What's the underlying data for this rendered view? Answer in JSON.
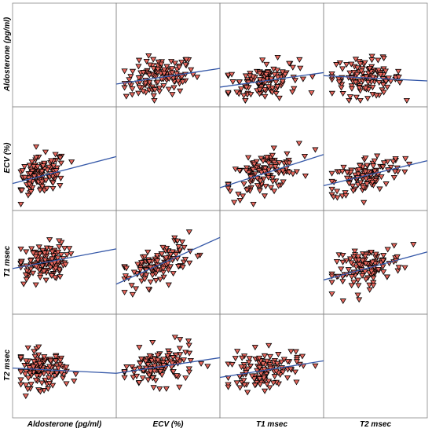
{
  "chart_data": {
    "type": "scatter",
    "title": "",
    "variables": [
      "Aldosterone (pg/ml)",
      "ECV (%)",
      "T1 msec",
      "T2 msec"
    ],
    "marker": {
      "shape": "downward-triangle",
      "fill": "#e8685e",
      "stroke": "#000000"
    },
    "fit_line_color": "#3558a8",
    "panels": [
      {
        "row": 0,
        "col": 1,
        "x_var": "ECV (%)",
        "y_var": "Aldosterone (pg/ml)",
        "fit_line": [
          [
            0,
            0.22
          ],
          [
            1,
            0.37
          ]
        ]
      },
      {
        "row": 0,
        "col": 2,
        "x_var": "T1 msec",
        "y_var": "Aldosterone (pg/ml)",
        "fit_line": [
          [
            0,
            0.19
          ],
          [
            1,
            0.33
          ]
        ]
      },
      {
        "row": 0,
        "col": 3,
        "x_var": "T2 msec",
        "y_var": "Aldosterone (pg/ml)",
        "fit_line": [
          [
            0,
            0.3
          ],
          [
            1,
            0.25
          ]
        ]
      },
      {
        "row": 1,
        "col": 0,
        "x_var": "Aldosterone (pg/ml)",
        "y_var": "ECV (%)",
        "fit_line": [
          [
            0,
            0.26
          ],
          [
            1,
            0.52
          ]
        ]
      },
      {
        "row": 1,
        "col": 2,
        "x_var": "T1 msec",
        "y_var": "ECV (%)",
        "fit_line": [
          [
            0,
            0.22
          ],
          [
            1,
            0.54
          ]
        ]
      },
      {
        "row": 1,
        "col": 3,
        "x_var": "T2 msec",
        "y_var": "ECV (%)",
        "fit_line": [
          [
            0,
            0.24
          ],
          [
            1,
            0.48
          ]
        ]
      },
      {
        "row": 2,
        "col": 0,
        "x_var": "Aldosterone (pg/ml)",
        "y_var": "T1 msec",
        "fit_line": [
          [
            0,
            0.44
          ],
          [
            1,
            0.63
          ]
        ]
      },
      {
        "row": 2,
        "col": 1,
        "x_var": "ECV (%)",
        "y_var": "T1 msec",
        "fit_line": [
          [
            0,
            0.29
          ],
          [
            1,
            0.74
          ]
        ]
      },
      {
        "row": 2,
        "col": 3,
        "x_var": "T2 msec",
        "y_var": "T1 msec",
        "fit_line": [
          [
            0,
            0.33
          ],
          [
            1,
            0.6
          ]
        ]
      },
      {
        "row": 3,
        "col": 0,
        "x_var": "Aldosterone (pg/ml)",
        "y_var": "T2 msec",
        "fit_line": [
          [
            0,
            0.48
          ],
          [
            1,
            0.43
          ]
        ]
      },
      {
        "row": 3,
        "col": 1,
        "x_var": "ECV (%)",
        "y_var": "T2 msec",
        "fit_line": [
          [
            0,
            0.43
          ],
          [
            1,
            0.58
          ]
        ]
      },
      {
        "row": 3,
        "col": 2,
        "x_var": "T1 msec",
        "y_var": "T2 msec",
        "fit_line": [
          [
            0,
            0.39
          ],
          [
            1,
            0.55
          ]
        ]
      }
    ]
  }
}
